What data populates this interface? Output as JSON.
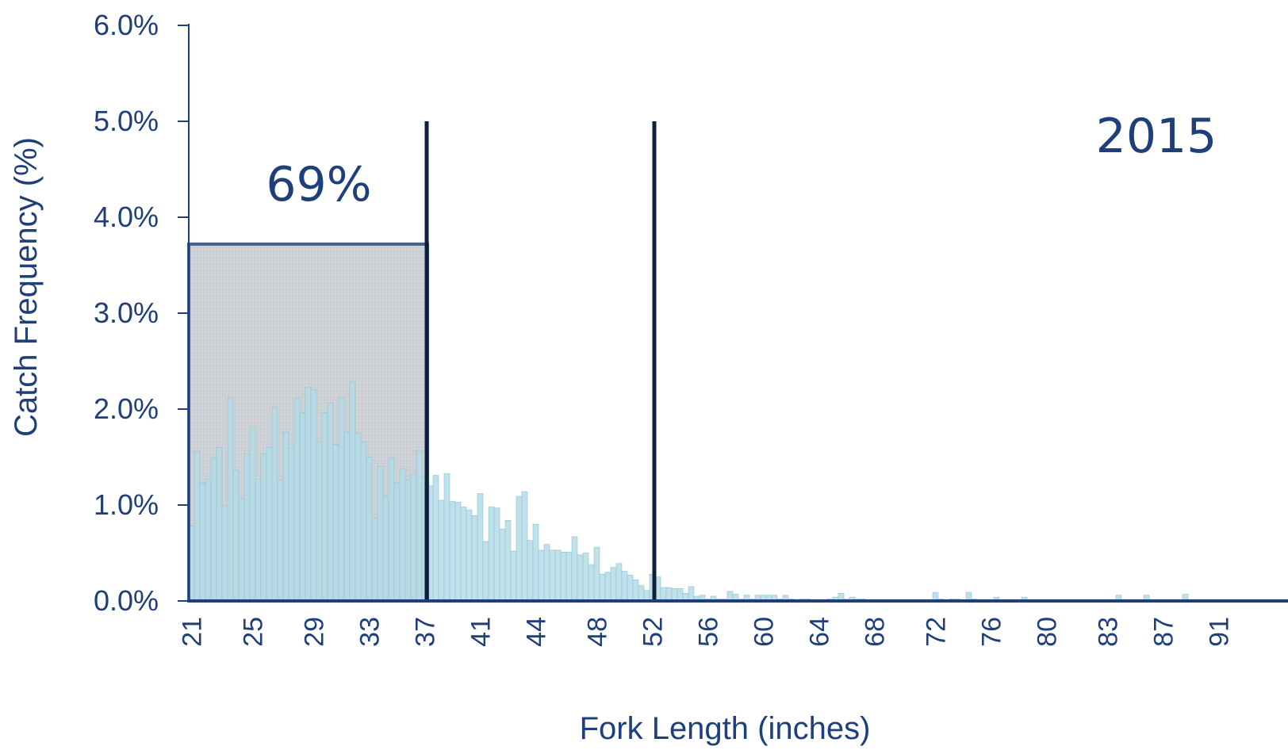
{
  "chart_data": {
    "type": "bar",
    "title": "",
    "xlabel": "Fork Length (inches)",
    "ylabel": "Catch  Frequency (%)",
    "ylim": [
      0,
      6.0
    ],
    "y_ticks": [
      "0.0%",
      "1.0%",
      "2.0%",
      "3.0%",
      "4.0%",
      "5.0%",
      "6.0%"
    ],
    "x_tick_labels": [
      "21",
      "25",
      "29",
      "33",
      "37",
      "41",
      "44",
      "48",
      "52",
      "56",
      "60",
      "64",
      "68",
      "72",
      "76",
      "80",
      "83",
      "87",
      "91"
    ],
    "x_tick_indices": [
      0,
      11,
      22,
      32,
      42,
      52,
      62,
      73,
      83,
      93,
      103,
      113,
      123,
      134,
      144,
      154,
      165,
      175,
      185
    ],
    "values": [
      0.78,
      1.56,
      1.23,
      1.27,
      1.49,
      1.6,
      0.99,
      2.11,
      1.36,
      1.07,
      1.53,
      1.81,
      1.27,
      1.53,
      1.6,
      2.01,
      1.26,
      1.76,
      1.6,
      2.11,
      1.96,
      2.23,
      2.2,
      1.66,
      1.96,
      2.06,
      1.63,
      2.12,
      1.76,
      2.28,
      1.75,
      1.66,
      1.5,
      0.86,
      1.4,
      1.09,
      1.49,
      1.23,
      1.38,
      1.26,
      1.32,
      1.57,
      1.29,
      1.2,
      1.31,
      1.05,
      1.33,
      1.04,
      1.03,
      0.98,
      0.95,
      0.89,
      1.12,
      0.62,
      0.98,
      0.97,
      0.75,
      0.84,
      0.52,
      1.09,
      1.14,
      0.63,
      0.8,
      0.53,
      0.59,
      0.53,
      0.53,
      0.51,
      0.51,
      0.67,
      0.48,
      0.5,
      0.38,
      0.56,
      0.28,
      0.3,
      0.35,
      0.39,
      0.31,
      0.27,
      0.22,
      0.16,
      0.11,
      0.28,
      0.25,
      0.14,
      0.14,
      0.13,
      0.13,
      0.08,
      0.15,
      0.05,
      0.06,
      0.02,
      0.05,
      0.02,
      0.02,
      0.1,
      0.07,
      0.02,
      0.06,
      0.02,
      0.06,
      0.06,
      0.06,
      0.06,
      0.02,
      0.06,
      0.02,
      0.0,
      0.02,
      0.02,
      0.0,
      0.0,
      0.0,
      0.02,
      0.04,
      0.08,
      0.02,
      0.04,
      0.02,
      0.02,
      0.0,
      0.0,
      0.0,
      0.0,
      0.0,
      0.0,
      0.0,
      0.0,
      0.0,
      0.0,
      0.0,
      0.0,
      0.09,
      0.02,
      0.0,
      0.02,
      0.02,
      0.0,
      0.09,
      0.02,
      0.0,
      0.0,
      0.0,
      0.04,
      0.0,
      0.0,
      0.0,
      0.0,
      0.04,
      0.0,
      0.0,
      0.0,
      0.0,
      0.0,
      0.0,
      0.0,
      0.0,
      0.0,
      0.0,
      0.0,
      0.0,
      0.0,
      0.0,
      0.0,
      0.0,
      0.06,
      0.0,
      0.0,
      0.0,
      0.0,
      0.06,
      0.0,
      0.0,
      0.0,
      0.0,
      0.0,
      0.0,
      0.07,
      0.0,
      0.0,
      0.0,
      0.0,
      0.0,
      0.0,
      0.0,
      0.0,
      0.0,
      0.0,
      0.0
    ],
    "reference_lines_at_index": [
      43,
      84
    ],
    "reference_line_top": 5.0,
    "highlight": {
      "start_index": 0,
      "end_index": 43,
      "top": 3.72,
      "label": "69%"
    },
    "year_annotation": "2015",
    "grid": false,
    "colors": {
      "bar_fill": "#b5dbe6",
      "bar_stroke": "#8cc5d6",
      "axis": "#1f3f7a",
      "ref_line": "#0d1f3a",
      "highlight_stroke": "#41618f",
      "highlight_fill": "#d0d4d8",
      "text": "#1f3f7a"
    }
  }
}
